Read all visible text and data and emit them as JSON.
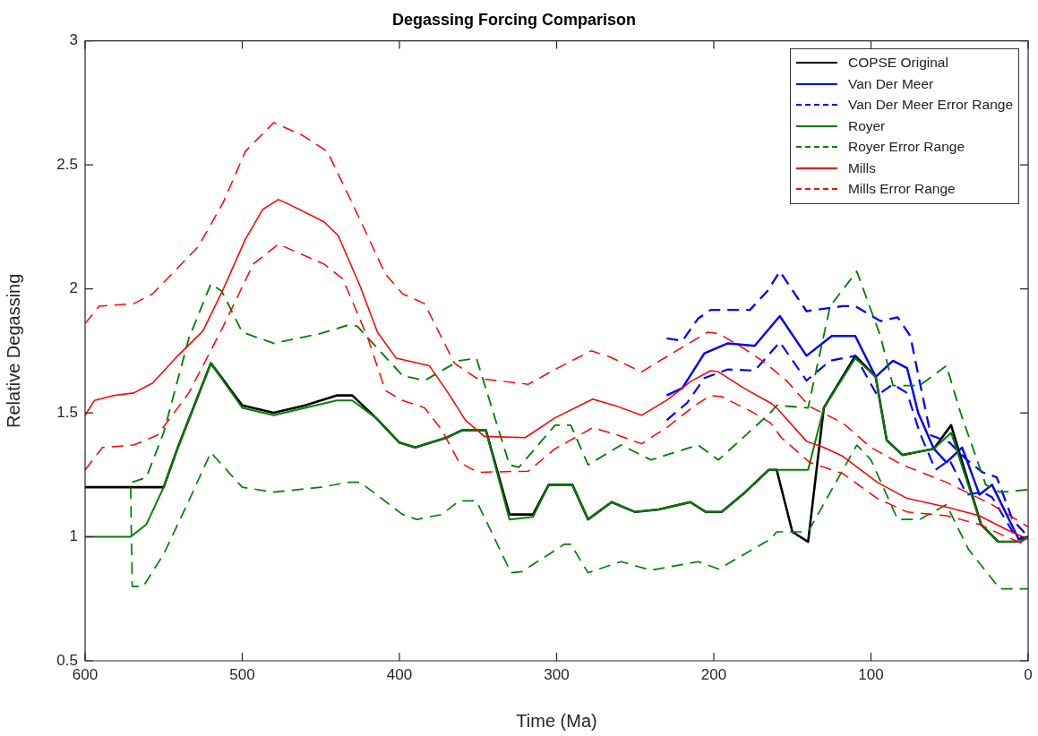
{
  "chart_data": {
    "type": "line",
    "title": "Degassing Forcing Comparison",
    "xlabel": "Time (Ma)",
    "ylabel": "Relative Degassing",
    "xlim": [
      600,
      0
    ],
    "xticks": [
      600,
      500,
      400,
      300,
      200,
      100,
      0
    ],
    "ylim": [
      0.5,
      3
    ],
    "yticks": [
      0.5,
      1,
      1.5,
      2,
      2.5,
      3
    ],
    "legend": "top right",
    "marker": "none",
    "series": [
      {
        "name": "COPSE Original",
        "color": "#000000",
        "line_style": "solid",
        "x": [
          600,
          550,
          541,
          520,
          500,
          480,
          460,
          440,
          430,
          415,
          400,
          390,
          370,
          360,
          345,
          330,
          315,
          305,
          290,
          280,
          265,
          250,
          235,
          215,
          205,
          195,
          180,
          165,
          160,
          150,
          140,
          130,
          110,
          97,
          90,
          80,
          60,
          49,
          30,
          19,
          5,
          0
        ],
        "values": [
          1.2,
          1.2,
          1.36,
          1.7,
          1.53,
          1.5,
          1.53,
          1.57,
          1.57,
          1.48,
          1.38,
          1.36,
          1.4,
          1.43,
          1.43,
          1.09,
          1.09,
          1.21,
          1.21,
          1.07,
          1.14,
          1.1,
          1.11,
          1.14,
          1.1,
          1.1,
          1.18,
          1.27,
          1.27,
          1.02,
          0.98,
          1.52,
          1.73,
          1.645,
          1.39,
          1.33,
          1.355,
          1.45,
          1.05,
          0.98,
          0.98,
          1.0
        ]
      },
      {
        "name": "Van Der Meer",
        "color": "#0000ff",
        "line_style": "solid",
        "x": [
          230,
          220,
          206,
          191,
          174,
          158,
          141,
          125,
          110,
          97,
          86,
          77,
          70,
          60,
          52,
          42,
          31,
          23,
          6,
          0
        ],
        "values": [
          1.57,
          1.6,
          1.74,
          1.78,
          1.77,
          1.89,
          1.73,
          1.81,
          1.81,
          1.645,
          1.71,
          1.68,
          1.5,
          1.355,
          1.3,
          1.36,
          1.17,
          1.21,
          0.99,
          1.0
        ]
      },
      {
        "name": "Van Der Meer Error Range",
        "color": "#0000ff",
        "line_style": "dashed",
        "x": [
          230,
          220,
          210,
          202,
          177,
          166,
          158,
          141,
          118,
          110,
          94,
          83,
          75,
          62,
          50,
          39,
          29,
          20,
          10,
          0
        ],
        "values": [
          1.8,
          1.79,
          1.88,
          1.915,
          1.915,
          1.99,
          2.07,
          1.91,
          1.93,
          1.93,
          1.87,
          1.885,
          1.81,
          1.41,
          1.38,
          1.31,
          1.26,
          1.24,
          1.07,
          1.0
        ]
      },
      {
        "color": "#0000ff",
        "line_style": "dashed",
        "x": [
          230,
          217,
          206,
          191,
          174,
          158,
          141,
          126,
          110,
          96,
          86,
          77,
          69,
          59,
          50,
          39,
          29,
          23,
          7,
          0
        ],
        "values": [
          1.47,
          1.54,
          1.64,
          1.675,
          1.67,
          1.785,
          1.63,
          1.71,
          1.73,
          1.57,
          1.615,
          1.58,
          1.42,
          1.27,
          1.31,
          1.17,
          1.18,
          1.16,
          0.99,
          1.0
        ]
      },
      {
        "name": "Royer",
        "color": "#008000",
        "line_style": "solid",
        "x": [
          600,
          571,
          561,
          550,
          541,
          520,
          500,
          480,
          460,
          440,
          430,
          415,
          400,
          390,
          370,
          360,
          345,
          330,
          315,
          305,
          290,
          280,
          265,
          250,
          235,
          215,
          205,
          195,
          180,
          165,
          160,
          140,
          130,
          110,
          97,
          90,
          80,
          60,
          49,
          30,
          19,
          5,
          0
        ],
        "values": [
          1.0,
          1.0,
          1.05,
          1.2,
          1.36,
          1.7,
          1.52,
          1.49,
          1.52,
          1.55,
          1.55,
          1.48,
          1.38,
          1.36,
          1.4,
          1.43,
          1.43,
          1.07,
          1.08,
          1.21,
          1.21,
          1.07,
          1.14,
          1.1,
          1.11,
          1.14,
          1.1,
          1.1,
          1.18,
          1.27,
          1.27,
          1.27,
          1.52,
          1.72,
          1.645,
          1.39,
          1.33,
          1.355,
          1.42,
          1.05,
          0.98,
          0.98,
          1.0
        ]
      },
      {
        "name": "Royer Error Range",
        "color": "#008000",
        "line_style": "dashed",
        "x": [
          570,
          561,
          550,
          534,
          520,
          513,
          500,
          480,
          450,
          432,
          427,
          398,
          384,
          362,
          351,
          330,
          324,
          301,
          291,
          280,
          259,
          240,
          210,
          197,
          164,
          160,
          140,
          126,
          109,
          94,
          86,
          69,
          52,
          43,
          27,
          18,
          0
        ],
        "values": [
          1.22,
          1.24,
          1.42,
          1.8,
          2.02,
          1.99,
          1.825,
          1.78,
          1.82,
          1.855,
          1.85,
          1.65,
          1.63,
          1.71,
          1.72,
          1.29,
          1.28,
          1.45,
          1.45,
          1.29,
          1.37,
          1.31,
          1.37,
          1.31,
          1.5,
          1.53,
          1.52,
          1.93,
          2.07,
          1.81,
          1.61,
          1.61,
          1.69,
          1.5,
          1.21,
          1.18,
          1.19
        ]
      },
      {
        "color": "#008000",
        "line_style": "dashed",
        "x": [
          571,
          570,
          563,
          550,
          534,
          520,
          500,
          480,
          450,
          432,
          425,
          398,
          389,
          373,
          362,
          351,
          329,
          322,
          295,
          291,
          280,
          259,
          240,
          210,
          197,
          164,
          160,
          140,
          109,
          100,
          83,
          69,
          52,
          38,
          18,
          0
        ],
        "values": [
          1.2,
          0.8,
          0.8,
          0.93,
          1.145,
          1.34,
          1.2,
          1.18,
          1.2,
          1.22,
          1.22,
          1.09,
          1.07,
          1.09,
          1.145,
          1.145,
          0.855,
          0.86,
          0.97,
          0.97,
          0.855,
          0.9,
          0.865,
          0.9,
          0.87,
          0.99,
          1.02,
          1.02,
          1.37,
          1.31,
          1.07,
          1.07,
          1.13,
          0.95,
          0.79,
          0.79
        ]
      },
      {
        "name": "Mills",
        "color": "#ff0000",
        "line_style": "solid",
        "x": [
          600,
          594,
          582,
          569,
          557,
          541,
          525,
          512,
          498,
          487,
          477,
          470,
          448,
          439,
          425,
          414,
          402,
          381,
          369,
          358,
          346,
          320,
          301,
          277,
          261,
          246,
          229,
          215,
          202,
          197,
          181,
          164,
          160,
          141,
          130,
          118,
          96,
          77,
          52,
          31,
          14,
          0
        ],
        "values": [
          1.49,
          1.55,
          1.57,
          1.58,
          1.62,
          1.73,
          1.83,
          2.0,
          2.2,
          2.32,
          2.36,
          2.34,
          2.27,
          2.215,
          2.01,
          1.825,
          1.72,
          1.69,
          1.58,
          1.47,
          1.405,
          1.4,
          1.48,
          1.555,
          1.525,
          1.49,
          1.555,
          1.625,
          1.67,
          1.665,
          1.6,
          1.54,
          1.52,
          1.385,
          1.36,
          1.325,
          1.22,
          1.155,
          1.12,
          1.085,
          1.03,
          0.99
        ]
      },
      {
        "name": "Mills Error Range",
        "color": "#ff0000",
        "line_style": "dashed",
        "x": [
          600,
          591,
          569,
          557,
          528,
          512,
          498,
          480,
          462,
          446,
          430,
          409,
          398,
          384,
          365,
          351,
          318,
          301,
          278,
          266,
          246,
          229,
          204,
          197,
          181,
          168,
          153,
          139,
          118,
          100,
          80,
          52,
          23,
          0
        ],
        "values": [
          1.86,
          1.93,
          1.94,
          1.98,
          2.17,
          2.35,
          2.555,
          2.67,
          2.62,
          2.555,
          2.345,
          2.06,
          1.98,
          1.94,
          1.7,
          1.64,
          1.615,
          1.675,
          1.75,
          1.725,
          1.665,
          1.73,
          1.825,
          1.82,
          1.76,
          1.705,
          1.625,
          1.525,
          1.46,
          1.36,
          1.29,
          1.22,
          1.13,
          1.04
        ]
      },
      {
        "color": "#ff0000",
        "line_style": "dashed",
        "x": [
          600,
          589,
          569,
          554,
          534,
          512,
          493,
          477,
          448,
          436,
          420,
          409,
          398,
          384,
          373,
          362,
          350,
          318,
          301,
          277,
          261,
          246,
          229,
          212,
          202,
          195,
          176,
          164,
          157,
          139,
          118,
          96,
          77,
          52,
          31,
          14,
          0
        ],
        "values": [
          1.27,
          1.36,
          1.37,
          1.41,
          1.58,
          1.85,
          2.1,
          2.18,
          2.1,
          2.04,
          1.8,
          1.59,
          1.55,
          1.52,
          1.43,
          1.3,
          1.26,
          1.265,
          1.355,
          1.44,
          1.41,
          1.375,
          1.445,
          1.53,
          1.57,
          1.565,
          1.505,
          1.46,
          1.4,
          1.3,
          1.255,
          1.155,
          1.1,
          1.085,
          1.05,
          1.0,
          0.965
        ]
      }
    ]
  }
}
